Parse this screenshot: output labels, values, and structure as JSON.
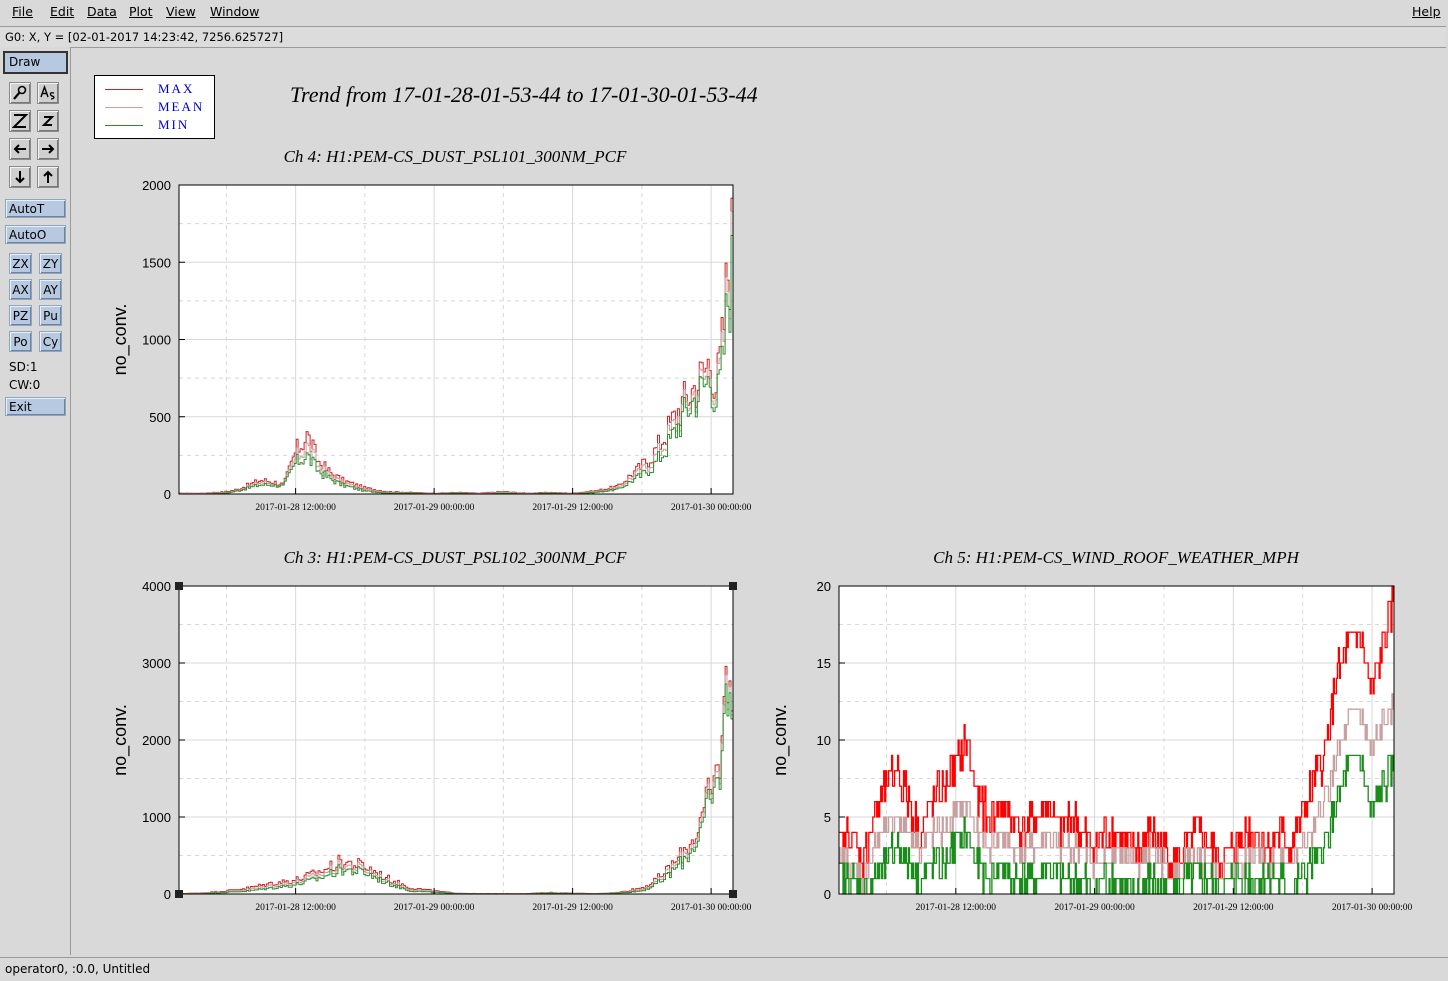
{
  "menu": {
    "file": "File",
    "edit": "Edit",
    "data": "Data",
    "plot": "Plot",
    "view": "View",
    "window": "Window",
    "help": "Help"
  },
  "coord_readout": "G0: X, Y = [02-01-2017 14:23:42, 7256.625727]",
  "sidebar": {
    "draw": "Draw",
    "autot": "AutoT",
    "autoo": "AutoO",
    "zx": "ZX",
    "zy": "ZY",
    "ax": "AX",
    "ay": "AY",
    "pz": "PZ",
    "pu": "Pu",
    "po": "Po",
    "cy": "Cy",
    "sd": "SD:1",
    "cw": "CW:0",
    "exit": "Exit",
    "icons": [
      "magnify-icon",
      "text-size-icon",
      "zoom-big-z-icon",
      "zoom-small-z-icon",
      "arrow-left-icon",
      "arrow-right-icon",
      "arrow-down-icon",
      "arrow-up-icon"
    ]
  },
  "status": "operator0, :0.0, Untitled",
  "title": "Trend from 17-01-28-01-53-44 to 17-01-30-01-53-44",
  "legend": [
    {
      "name": "MAX",
      "color": "#cc2222"
    },
    {
      "name": "MEAN",
      "color": "#c8a0a0"
    },
    {
      "name": "MIN",
      "color": "#2e8b2e"
    }
  ],
  "chart_data": [
    {
      "type": "line",
      "title": "Ch 4: H1:PEM-CS_DUST_PSL101_300NM_PCF",
      "xlabel": "",
      "ylabel": "no_conv.",
      "xlim": [
        "2017-01-28 01:53:44",
        "2017-01-30 01:53:44"
      ],
      "xticks": [
        "2017-01-28 12:00:00",
        "2017-01-29 00:00:00",
        "2017-01-29 12:00:00",
        "2017-01-30 00:00:00"
      ],
      "ylim": [
        0,
        2000
      ],
      "yticks": [
        "0",
        "500",
        "1000",
        "1500",
        "2000"
      ],
      "grid": true,
      "x_hours": [
        0,
        2,
        4,
        5,
        6,
        7,
        8,
        9,
        10,
        11,
        12,
        13,
        14,
        16,
        18,
        20,
        22,
        24,
        26,
        28,
        30,
        32,
        34,
        36,
        38,
        39,
        40,
        41,
        42,
        43,
        44,
        45,
        46,
        46.5,
        47,
        47.5,
        48
      ],
      "series": [
        {
          "name": "MAX",
          "color": "#cc2222",
          "values": [
            5,
            5,
            15,
            30,
            60,
            90,
            80,
            60,
            270,
            380,
            210,
            140,
            90,
            40,
            15,
            10,
            5,
            10,
            5,
            15,
            5,
            10,
            5,
            20,
            50,
            120,
            180,
            260,
            380,
            520,
            640,
            740,
            880,
            700,
            980,
            1480,
            1720
          ]
        },
        {
          "name": "MEAN",
          "color": "#c8a0a0",
          "values": [
            3,
            3,
            10,
            25,
            50,
            75,
            70,
            55,
            230,
            310,
            180,
            120,
            75,
            30,
            10,
            7,
            3,
            7,
            3,
            10,
            3,
            7,
            3,
            15,
            40,
            100,
            150,
            220,
            330,
            470,
            600,
            700,
            820,
            650,
            900,
            1400,
            1650
          ]
        },
        {
          "name": "MIN",
          "color": "#2e8b2e",
          "values": [
            0,
            0,
            5,
            20,
            40,
            60,
            60,
            50,
            200,
            250,
            150,
            100,
            60,
            20,
            5,
            5,
            0,
            5,
            0,
            5,
            0,
            5,
            0,
            10,
            30,
            80,
            120,
            180,
            280,
            420,
            560,
            660,
            760,
            600,
            820,
            1300,
            1500
          ]
        }
      ]
    },
    {
      "type": "line",
      "title": "Ch 3: H1:PEM-CS_DUST_PSL102_300NM_PCF",
      "xlabel": "",
      "ylabel": "no_conv.",
      "xlim": [
        "2017-01-28 01:53:44",
        "2017-01-30 01:53:44"
      ],
      "xticks": [
        "2017-01-28 12:00:00",
        "2017-01-29 00:00:00",
        "2017-01-29 12:00:00",
        "2017-01-30 00:00:00"
      ],
      "ylim": [
        0,
        4000
      ],
      "yticks": [
        "0",
        "1000",
        "2000",
        "3000",
        "4000"
      ],
      "grid": true,
      "x_hours": [
        0,
        2,
        4,
        6,
        8,
        10,
        12,
        14,
        16,
        18,
        20,
        22,
        24,
        26,
        28,
        30,
        32,
        34,
        36,
        38,
        40,
        41,
        42,
        43,
        44,
        45,
        46,
        46.5,
        47,
        47.5,
        48
      ],
      "series": [
        {
          "name": "MAX",
          "color": "#cc2222",
          "values": [
            5,
            15,
            40,
            80,
            140,
            180,
            280,
            420,
            360,
            200,
            80,
            40,
            10,
            5,
            5,
            5,
            20,
            10,
            5,
            20,
            80,
            150,
            280,
            420,
            620,
            880,
            1320,
            1500,
            2100,
            2900,
            3200
          ]
        },
        {
          "name": "MEAN",
          "color": "#c8a0a0",
          "values": [
            3,
            10,
            30,
            60,
            110,
            150,
            240,
            370,
            320,
            170,
            60,
            30,
            7,
            3,
            3,
            3,
            15,
            7,
            3,
            15,
            60,
            120,
            240,
            380,
            560,
            820,
            1260,
            1420,
            2000,
            2800,
            3150
          ]
        },
        {
          "name": "MIN",
          "color": "#2e8b2e",
          "values": [
            0,
            5,
            20,
            40,
            80,
            120,
            200,
            320,
            280,
            140,
            40,
            20,
            5,
            0,
            0,
            0,
            10,
            5,
            0,
            10,
            40,
            100,
            200,
            340,
            500,
            760,
            1200,
            1350,
            1900,
            2700,
            3100
          ]
        }
      ]
    },
    {
      "type": "line",
      "title": "Ch 5: H1:PEM-CS_WIND_ROOF_WEATHER_MPH",
      "xlabel": "",
      "ylabel": "no_conv.",
      "xlim": [
        "2017-01-28 01:53:44",
        "2017-01-30 01:53:44"
      ],
      "xticks": [
        "2017-01-28 12:00:00",
        "2017-01-29 00:00:00",
        "2017-01-29 12:00:00",
        "2017-01-30 00:00:00"
      ],
      "ylim": [
        0,
        20
      ],
      "yticks": [
        "0",
        "5",
        "10",
        "15",
        "20"
      ],
      "grid": true,
      "x_hours": [
        0,
        1,
        2,
        3,
        4,
        5,
        6,
        7,
        8,
        9,
        10,
        11,
        12,
        13,
        14,
        15,
        16,
        17,
        18,
        19,
        20,
        21,
        22,
        23,
        24,
        25,
        26,
        27,
        28,
        29,
        30,
        31,
        32,
        33,
        34,
        35,
        36,
        37,
        38,
        39,
        40,
        41,
        42,
        43,
        44,
        45,
        46,
        47,
        48
      ],
      "series": [
        {
          "name": "MAX",
          "color": "#ff0000",
          "values": [
            3,
            4,
            2,
            5,
            7,
            8,
            6,
            4,
            6,
            7,
            8,
            10,
            6,
            5,
            6,
            5,
            4,
            5,
            6,
            4,
            5,
            4,
            3,
            4,
            4,
            3,
            3,
            4,
            3,
            2,
            3,
            4,
            3,
            2,
            3,
            4,
            4,
            3,
            4,
            3,
            5,
            7,
            9,
            14,
            16,
            17,
            13,
            16,
            19
          ]
        },
        {
          "name": "MEAN",
          "color": "#c8a0a0",
          "values": [
            2,
            2,
            1,
            3,
            4,
            5,
            4,
            3,
            4,
            4,
            5,
            6,
            4,
            3,
            4,
            3,
            3,
            3,
            4,
            3,
            3,
            3,
            2,
            2,
            3,
            2,
            2,
            3,
            2,
            1,
            2,
            2,
            2,
            1,
            2,
            2,
            3,
            2,
            2,
            2,
            3,
            4,
            6,
            9,
            11,
            12,
            9,
            11,
            12
          ]
        },
        {
          "name": "MIN",
          "color": "#1a8c1a",
          "values": [
            1,
            1,
            0,
            1,
            2,
            3,
            2,
            1,
            2,
            2,
            3,
            4,
            2,
            1,
            2,
            1,
            1,
            1,
            2,
            1,
            1,
            1,
            0,
            1,
            1,
            0,
            0,
            1,
            0,
            0,
            1,
            1,
            1,
            0,
            1,
            1,
            1,
            1,
            1,
            0,
            1,
            2,
            3,
            6,
            8,
            9,
            5,
            7,
            8
          ]
        }
      ]
    }
  ]
}
